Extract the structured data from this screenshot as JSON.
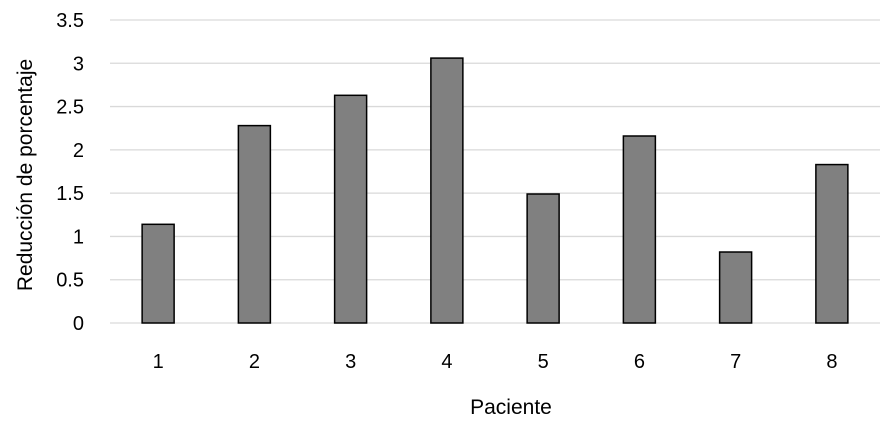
{
  "chart_data": {
    "type": "bar",
    "title": "",
    "xlabel": "Paciente",
    "ylabel": "Reducción de porcentaje",
    "categories": [
      "1",
      "2",
      "3",
      "4",
      "5",
      "6",
      "7",
      "8"
    ],
    "values": [
      1.14,
      2.28,
      2.63,
      3.06,
      1.49,
      2.16,
      0.82,
      1.83
    ],
    "ylim": [
      0,
      3.5
    ],
    "yticks": [
      "0",
      "0.5",
      "1",
      "1.5",
      "2",
      "2.5",
      "3",
      "3.5"
    ],
    "grid": true,
    "legend": "none",
    "colors": {
      "bar_fill": "#808080",
      "bar_stroke": "#000000",
      "grid": "#d9d9d9",
      "text": "#000000"
    }
  }
}
